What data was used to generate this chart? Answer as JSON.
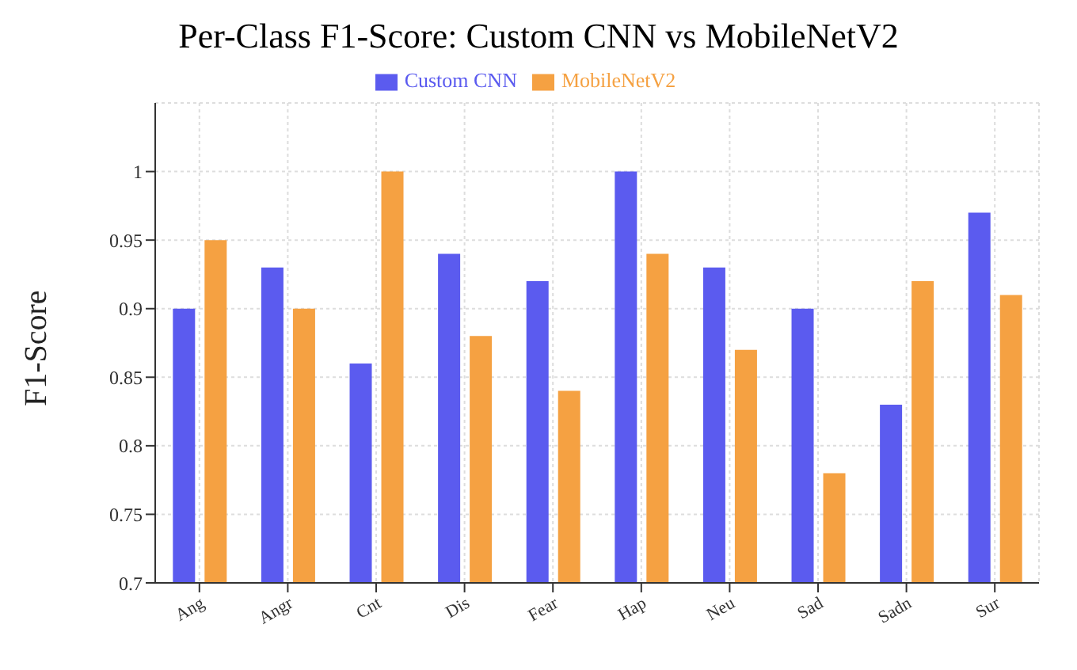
{
  "chart_data": {
    "type": "bar",
    "title": "Per-Class F1-Score: Custom CNN vs MobileNetV2",
    "ylabel": "F1-Score",
    "categories": [
      "Ang",
      "Angr",
      "Cnt",
      "Dis",
      "Fear",
      "Hap",
      "Neu",
      "Sad",
      "Sadn",
      "Sur"
    ],
    "series": [
      {
        "name": "Custom CNN",
        "color": "#5b5bef",
        "values": [
          0.9,
          0.93,
          0.86,
          0.94,
          0.92,
          1.0,
          0.93,
          0.9,
          0.83,
          0.97
        ]
      },
      {
        "name": "MobileNetV2",
        "color": "#f5a142",
        "values": [
          0.95,
          0.9,
          1.0,
          0.88,
          0.84,
          0.94,
          0.87,
          0.78,
          0.92,
          0.91
        ]
      }
    ],
    "ylim": [
      0.7,
      1.05
    ],
    "yticks": [
      0.7,
      0.75,
      0.8,
      0.85,
      0.9,
      0.95,
      1
    ],
    "grid": true,
    "legend": "top"
  }
}
